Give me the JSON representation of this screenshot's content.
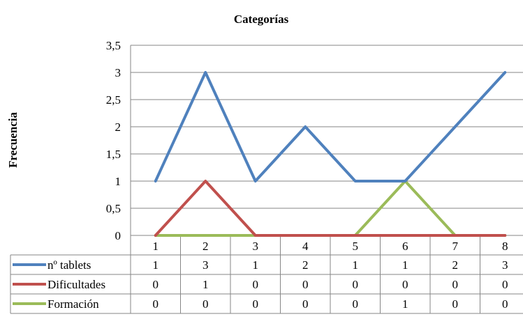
{
  "chart_data": {
    "type": "line",
    "title": "Categorías",
    "xlabel": "",
    "ylabel": "Frecuencia",
    "categories": [
      "1",
      "2",
      "3",
      "4",
      "5",
      "6",
      "7",
      "8"
    ],
    "y_ticks": [
      "0",
      "0,5",
      "1",
      "1,5",
      "2",
      "2,5",
      "3",
      "3,5"
    ],
    "ylim": [
      0,
      3.5
    ],
    "grid": true,
    "legend": "data-table",
    "series": [
      {
        "name": "nº tablets",
        "color": "#4F81BD",
        "values": [
          1,
          3,
          1,
          2,
          1,
          1,
          2,
          3
        ]
      },
      {
        "name": "Dificultades",
        "color": "#C0504D",
        "values": [
          0,
          1,
          0,
          0,
          0,
          0,
          0,
          0
        ]
      },
      {
        "name": "Formación",
        "color": "#9BBB59",
        "values": [
          0,
          0,
          0,
          0,
          0,
          1,
          0,
          0
        ]
      }
    ]
  }
}
